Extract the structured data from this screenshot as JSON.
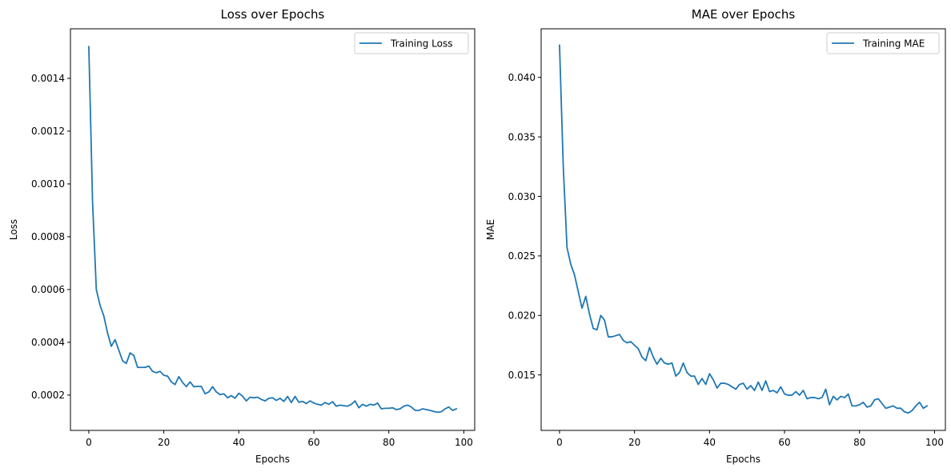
{
  "figure": {
    "background": "#ffffff",
    "line_color": "#1f77b4"
  },
  "chart_data": [
    {
      "type": "line",
      "title": "Loss over Epochs",
      "xlabel": "Epochs",
      "ylabel": "Loss",
      "xlim": [
        -4.9,
        102.9
      ],
      "ylim": [
        6.63e-05,
        0.0015877
      ],
      "xticks": [
        0,
        20,
        40,
        60,
        80,
        100
      ],
      "xtick_labels": [
        "0",
        "20",
        "40",
        "60",
        "80",
        "100"
      ],
      "yticks": [
        0.0002,
        0.0004,
        0.0006,
        0.0008,
        0.001,
        0.0012,
        0.0014
      ],
      "ytick_labels": [
        "0.0002",
        "0.0004",
        "0.0006",
        "0.0008",
        "0.0010",
        "0.0012",
        "0.0014"
      ],
      "grid": false,
      "legend": {
        "placement": "top-right"
      },
      "series": [
        {
          "name": "Training Loss",
          "color": "#1f77b4",
          "x": [
            0,
            1,
            2,
            3,
            4,
            5,
            6,
            7,
            8,
            9,
            10,
            11,
            12,
            13,
            14,
            15,
            16,
            17,
            18,
            19,
            20,
            21,
            22,
            23,
            24,
            25,
            26,
            27,
            28,
            29,
            30,
            31,
            32,
            33,
            34,
            35,
            36,
            37,
            38,
            39,
            40,
            41,
            42,
            43,
            44,
            45,
            46,
            47,
            48,
            49,
            50,
            51,
            52,
            53,
            54,
            55,
            56,
            57,
            58,
            59,
            60,
            61,
            62,
            63,
            64,
            65,
            66,
            67,
            68,
            69,
            70,
            71,
            72,
            73,
            74,
            75,
            76,
            77,
            78,
            79,
            80,
            81,
            82,
            83,
            84,
            85,
            86,
            87,
            88,
            89,
            90,
            91,
            92,
            93,
            94,
            95,
            96,
            97,
            98
          ],
          "y": [
            0.00152,
            0.00093,
            0.0006,
            0.00054,
            0.0005,
            0.000435,
            0.000385,
            0.00041,
            0.00037,
            0.00033,
            0.00032,
            0.00036,
            0.00035,
            0.000305,
            0.000305,
            0.000305,
            0.00031,
            0.00029,
            0.000285,
            0.00029,
            0.000275,
            0.000272,
            0.00025,
            0.00024,
            0.00027,
            0.000248,
            0.000232,
            0.00025,
            0.000232,
            0.000233,
            0.000233,
            0.000205,
            0.000212,
            0.000232,
            0.000212,
            0.000202,
            0.000205,
            0.00019,
            0.000198,
            0.000188,
            0.000207,
            0.000196,
            0.000178,
            0.000192,
            0.00019,
            0.000192,
            0.000184,
            0.000178,
            0.000188,
            0.00019,
            0.00018,
            0.000188,
            0.000176,
            0.000195,
            0.000172,
            0.000195,
            0.000173,
            0.000176,
            0.000168,
            0.000178,
            0.00017,
            0.000165,
            0.000162,
            0.000172,
            0.000165,
            0.000175,
            0.000158,
            0.000162,
            0.00016,
            0.000158,
            0.000165,
            0.000178,
            0.000152,
            0.000165,
            0.000158,
            0.000165,
            0.000162,
            0.00017,
            0.000148,
            0.00015,
            0.00015,
            0.000152,
            0.000145,
            0.000148,
            0.000158,
            0.000162,
            0.000155,
            0.000142,
            0.000142,
            0.000148,
            0.000145,
            0.000142,
            0.000138,
            0.000135,
            0.000137,
            0.000148,
            0.000155,
            0.000142,
            0.000148
          ]
        }
      ]
    },
    {
      "type": "line",
      "title": "MAE over Epochs",
      "xlabel": "Epochs",
      "ylabel": "MAE",
      "xlim": [
        -4.9,
        102.9
      ],
      "ylim": [
        0.01034,
        0.04408
      ],
      "xticks": [
        0,
        20,
        40,
        60,
        80,
        100
      ],
      "xtick_labels": [
        "0",
        "20",
        "40",
        "60",
        "80",
        "100"
      ],
      "yticks": [
        0.015,
        0.02,
        0.025,
        0.03,
        0.035,
        0.04
      ],
      "ytick_labels": [
        "0.015",
        "0.020",
        "0.025",
        "0.030",
        "0.035",
        "0.040"
      ],
      "grid": false,
      "legend": {
        "placement": "top-right"
      },
      "series": [
        {
          "name": "Training MAE",
          "color": "#1f77b4",
          "x": [
            0,
            1,
            2,
            3,
            4,
            5,
            6,
            7,
            8,
            9,
            10,
            11,
            12,
            13,
            14,
            15,
            16,
            17,
            18,
            19,
            20,
            21,
            22,
            23,
            24,
            25,
            26,
            27,
            28,
            29,
            30,
            31,
            32,
            33,
            34,
            35,
            36,
            37,
            38,
            39,
            40,
            41,
            42,
            43,
            44,
            45,
            46,
            47,
            48,
            49,
            50,
            51,
            52,
            53,
            54,
            55,
            56,
            57,
            58,
            59,
            60,
            61,
            62,
            63,
            64,
            65,
            66,
            67,
            68,
            69,
            70,
            71,
            72,
            73,
            74,
            75,
            76,
            77,
            78,
            79,
            80,
            81,
            82,
            83,
            84,
            85,
            86,
            87,
            88,
            89,
            90,
            91,
            92,
            93,
            94,
            95,
            96,
            97,
            98
          ],
          "y": [
            0.0427,
            0.0325,
            0.0257,
            0.0243,
            0.0234,
            0.022,
            0.0206,
            0.0216,
            0.0201,
            0.0189,
            0.0188,
            0.02,
            0.0196,
            0.0182,
            0.0182,
            0.0183,
            0.0184,
            0.0179,
            0.0177,
            0.0178,
            0.0175,
            0.0172,
            0.0165,
            0.0162,
            0.0173,
            0.0165,
            0.0159,
            0.0164,
            0.016,
            0.0159,
            0.016,
            0.0149,
            0.0152,
            0.016,
            0.0152,
            0.0149,
            0.0149,
            0.0142,
            0.0147,
            0.0142,
            0.0151,
            0.0146,
            0.0139,
            0.0143,
            0.0143,
            0.0142,
            0.014,
            0.0138,
            0.0142,
            0.0143,
            0.0138,
            0.0141,
            0.0137,
            0.0144,
            0.0137,
            0.0145,
            0.0136,
            0.0137,
            0.0135,
            0.014,
            0.0134,
            0.0133,
            0.0133,
            0.0136,
            0.0133,
            0.0137,
            0.013,
            0.0131,
            0.0131,
            0.013,
            0.0131,
            0.0138,
            0.0125,
            0.0132,
            0.0129,
            0.0132,
            0.0131,
            0.0134,
            0.0124,
            0.0124,
            0.0125,
            0.0127,
            0.0123,
            0.0124,
            0.0129,
            0.013,
            0.0126,
            0.0122,
            0.0123,
            0.0124,
            0.0122,
            0.0122,
            0.0119,
            0.0118,
            0.012,
            0.0124,
            0.0127,
            0.0122,
            0.0124
          ]
        }
      ]
    }
  ]
}
